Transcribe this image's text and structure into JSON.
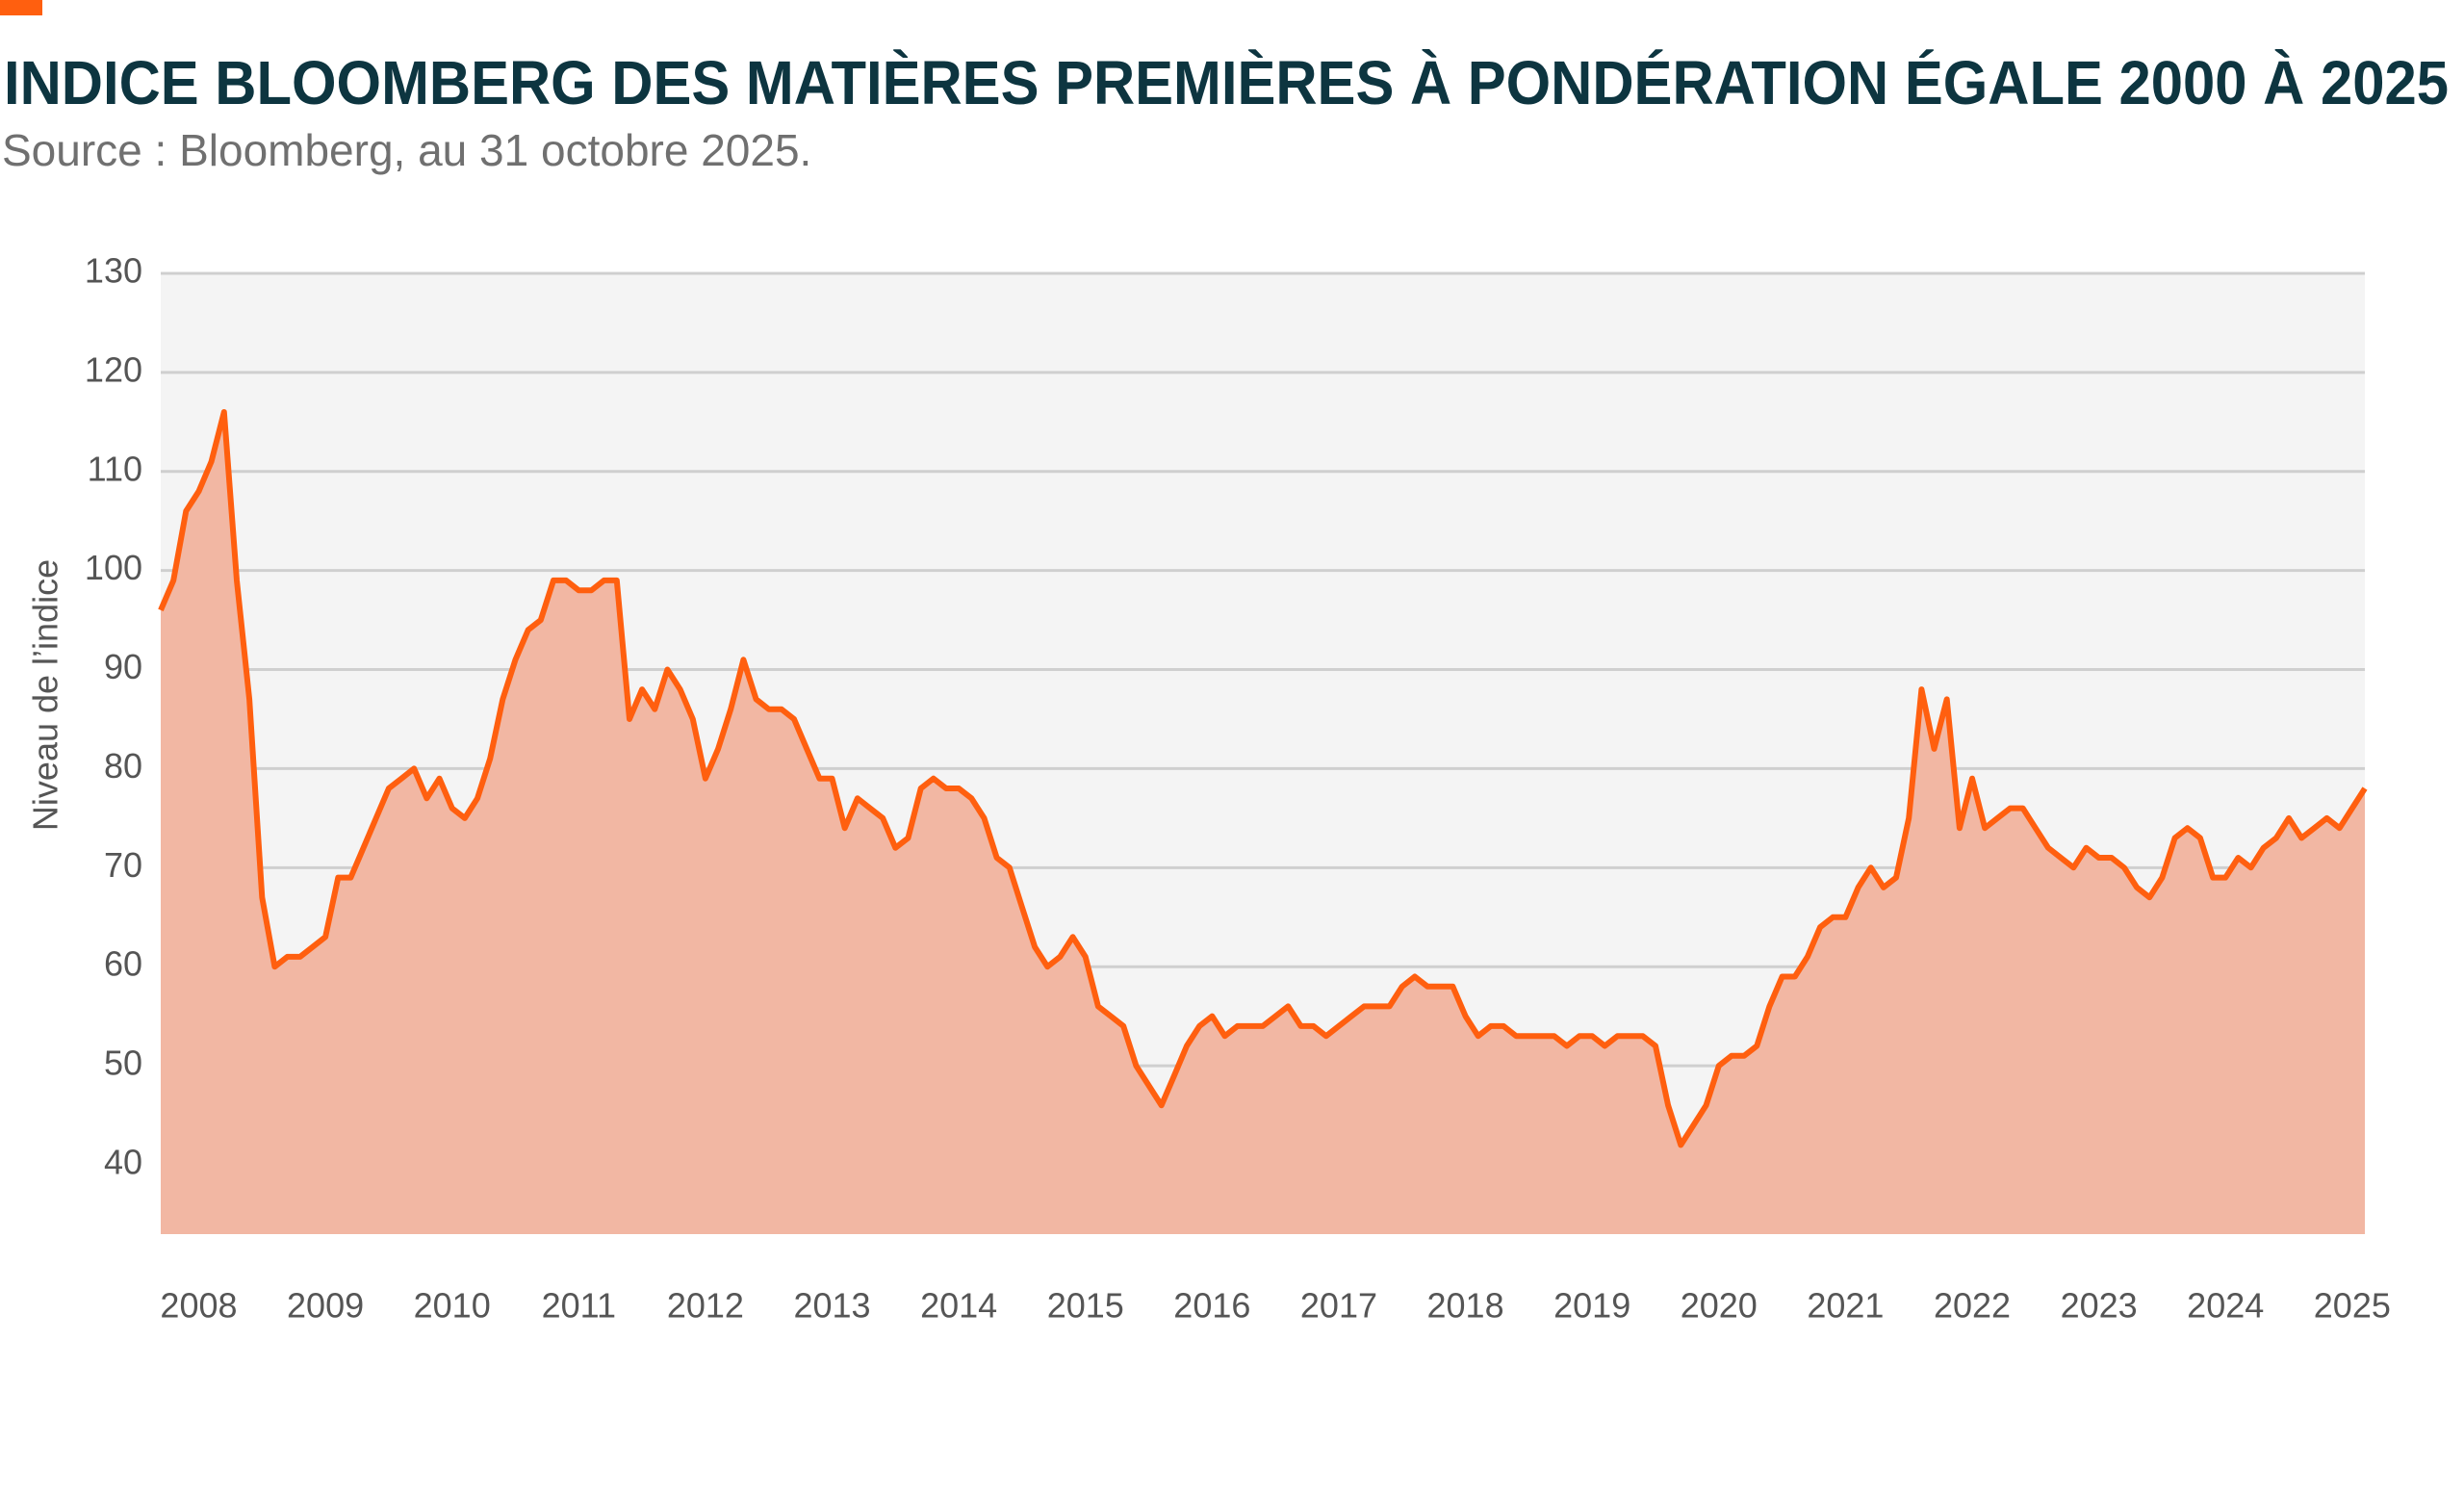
{
  "chart_data": {
    "type": "area",
    "title": "INDICE BLOOMBERG DES MATIÈRES PREMIÈRES À PONDÉRATION ÉGALE 2000 À 2025",
    "subtitle": "Source : Bloomberg, au 31 octobre 2025.",
    "y_label": "Niveau de l’indice",
    "color": "#ff5f0f",
    "fill": "#f2b7a3",
    "grid": true,
    "xlim": [
      2008.2,
      2025.6
    ],
    "xticks": [
      {
        "value": 2008.5,
        "label": "2008"
      },
      {
        "value": 2009.5,
        "label": "2009"
      },
      {
        "value": 2010.5,
        "label": "2010"
      },
      {
        "value": 2011.5,
        "label": "2011"
      },
      {
        "value": 2012.5,
        "label": "2012"
      },
      {
        "value": 2013.5,
        "label": "2013"
      },
      {
        "value": 2014.5,
        "label": "2014"
      },
      {
        "value": 2015.5,
        "label": "2015"
      },
      {
        "value": 2016.5,
        "label": "2016"
      },
      {
        "value": 2017.5,
        "label": "2017"
      },
      {
        "value": 2018.5,
        "label": "2018"
      },
      {
        "value": 2019.5,
        "label": "2019"
      },
      {
        "value": 2020.5,
        "label": "2020"
      },
      {
        "value": 2021.5,
        "label": "2021"
      },
      {
        "value": 2022.5,
        "label": "2022"
      },
      {
        "value": 2023.5,
        "label": "2023"
      },
      {
        "value": 2024.5,
        "label": "2024"
      },
      {
        "value": 2025.5,
        "label": "2025"
      }
    ],
    "ylim": [
      33,
      130
    ],
    "yticks": [
      40,
      50,
      60,
      70,
      80,
      90,
      100,
      110,
      120,
      130
    ],
    "x": [
      2008.2,
      2008.3,
      2008.4,
      2008.5,
      2008.6,
      2008.7,
      2008.8,
      2008.9,
      2009.0,
      2009.1,
      2009.2,
      2009.3,
      2009.4,
      2009.5,
      2009.6,
      2009.7,
      2009.8,
      2009.9,
      2010.0,
      2010.1,
      2010.2,
      2010.3,
      2010.4,
      2010.5,
      2010.6,
      2010.7,
      2010.8,
      2010.9,
      2011.0,
      2011.1,
      2011.2,
      2011.3,
      2011.4,
      2011.5,
      2011.6,
      2011.7,
      2011.8,
      2011.9,
      2012.0,
      2012.1,
      2012.2,
      2012.3,
      2012.4,
      2012.5,
      2012.6,
      2012.7,
      2012.8,
      2012.9,
      2013.0,
      2013.1,
      2013.2,
      2013.3,
      2013.4,
      2013.5,
      2013.6,
      2013.7,
      2013.8,
      2013.9,
      2014.0,
      2014.1,
      2014.2,
      2014.3,
      2014.4,
      2014.5,
      2014.6,
      2014.7,
      2014.8,
      2014.9,
      2015.0,
      2015.1,
      2015.2,
      2015.3,
      2015.4,
      2015.5,
      2015.6,
      2015.7,
      2015.8,
      2015.9,
      2016.0,
      2016.1,
      2016.2,
      2016.3,
      2016.4,
      2016.5,
      2016.6,
      2016.7,
      2016.8,
      2016.9,
      2017.0,
      2017.1,
      2017.2,
      2017.3,
      2017.4,
      2017.5,
      2017.6,
      2017.7,
      2017.8,
      2017.9,
      2018.0,
      2018.1,
      2018.2,
      2018.3,
      2018.4,
      2018.5,
      2018.6,
      2018.7,
      2018.8,
      2018.9,
      2019.0,
      2019.1,
      2019.2,
      2019.3,
      2019.4,
      2019.5,
      2019.6,
      2019.7,
      2019.8,
      2019.9,
      2020.0,
      2020.1,
      2020.2,
      2020.3,
      2020.4,
      2020.5,
      2020.6,
      2020.7,
      2020.8,
      2020.9,
      2021.0,
      2021.1,
      2021.2,
      2021.3,
      2021.4,
      2021.5,
      2021.6,
      2021.7,
      2021.8,
      2021.9,
      2022.0,
      2022.1,
      2022.2,
      2022.3,
      2022.4,
      2022.5,
      2022.6,
      2022.7,
      2022.8,
      2022.9,
      2023.0,
      2023.1,
      2023.2,
      2023.3,
      2023.4,
      2023.5,
      2023.6,
      2023.7,
      2023.8,
      2023.9,
      2024.0,
      2024.1,
      2024.2,
      2024.3,
      2024.4,
      2024.5,
      2024.6,
      2024.7,
      2024.8,
      2024.9,
      2025.0,
      2025.1,
      2025.2,
      2025.3,
      2025.4,
      2025.5,
      2025.6
    ],
    "values": [
      96,
      99,
      106,
      108,
      111,
      116,
      99,
      87,
      67,
      60,
      61,
      61,
      62,
      63,
      69,
      69,
      72,
      75,
      78,
      79,
      80,
      77,
      79,
      76,
      75,
      77,
      81,
      87,
      91,
      94,
      95,
      99,
      99,
      98,
      98,
      99,
      99,
      85,
      88,
      86,
      90,
      88,
      85,
      79,
      82,
      86,
      91,
      87,
      86,
      86,
      85,
      82,
      79,
      79,
      74,
      77,
      76,
      75,
      72,
      73,
      78,
      79,
      78,
      78,
      77,
      75,
      71,
      70,
      66,
      62,
      60,
      61,
      63,
      61,
      56,
      55,
      54,
      50,
      48,
      46,
      49,
      52,
      54,
      55,
      53,
      54,
      54,
      54,
      55,
      56,
      54,
      54,
      53,
      54,
      55,
      56,
      56,
      56,
      58,
      59,
      58,
      58,
      58,
      55,
      53,
      54,
      54,
      53,
      53,
      53,
      53,
      52,
      53,
      53,
      52,
      53,
      53,
      53,
      52,
      46,
      42,
      44,
      46,
      50,
      51,
      51,
      52,
      56,
      59,
      59,
      61,
      64,
      65,
      65,
      68,
      70,
      68,
      69,
      75,
      88,
      82,
      87,
      74,
      79,
      74,
      75,
      76,
      76,
      74,
      72,
      71,
      70,
      72,
      71,
      71,
      70,
      68,
      67,
      69,
      73,
      74,
      73,
      69,
      69,
      71,
      70,
      72,
      73,
      75,
      73,
      74,
      75,
      74,
      76,
      78
    ]
  }
}
